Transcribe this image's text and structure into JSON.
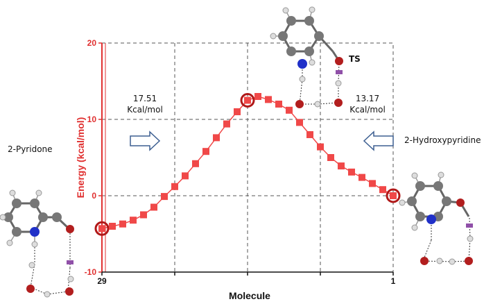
{
  "chart_data": {
    "type": "line",
    "xlabel": "Molecule",
    "ylabel": "Energy (kcal/mol)",
    "x_tick_labels": [
      "29",
      "1"
    ],
    "y_tick_labels": [
      "-10",
      "0",
      "10",
      "20"
    ],
    "xlim": [
      29,
      1
    ],
    "ylim": [
      -10,
      20
    ],
    "grid": true,
    "series_color": "#f04848",
    "axis_color": "#e03030",
    "series": [
      {
        "x": [
          29,
          28,
          27,
          26,
          25,
          24,
          23,
          22,
          21,
          20,
          19,
          18,
          17,
          16,
          15,
          14,
          13,
          12,
          11,
          10,
          9,
          8,
          7,
          6,
          5,
          4,
          3,
          2,
          1
        ],
        "values": [
          -4.3,
          -4.0,
          -3.7,
          -3.2,
          -2.5,
          -1.5,
          -0.1,
          1.2,
          2.6,
          4.2,
          5.8,
          7.6,
          9.4,
          11.0,
          12.5,
          13.0,
          12.6,
          12.0,
          11.2,
          9.6,
          8.0,
          6.4,
          5.0,
          3.9,
          3.1,
          2.4,
          1.6,
          0.8,
          0.0
        ]
      }
    ],
    "highlighted_points_x": [
      29,
      15,
      1
    ],
    "annotations": {
      "left_species": "2-Pyridone",
      "right_species": "2-Hydroxypyridine",
      "ts_label": "TS",
      "left_barrier_value": "17.51",
      "left_barrier_unit": "Kcal/mol",
      "right_barrier_value": "13.17",
      "right_barrier_unit": "Kcal/mol"
    },
    "arrow_direction_left": "right",
    "arrow_direction_right": "left"
  }
}
